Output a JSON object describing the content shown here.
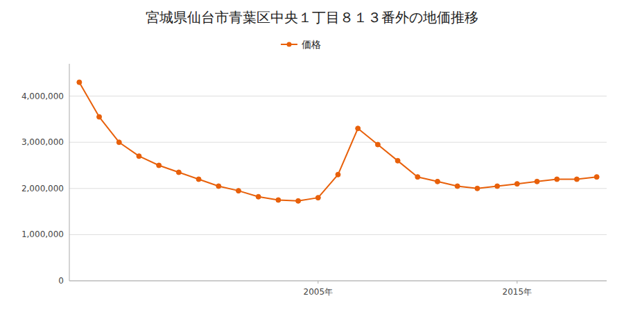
{
  "chart_data": {
    "type": "line",
    "title": "宮城県仙台市青葉区中央１丁目８１３番外の地価推移",
    "x": [
      1993,
      1994,
      1995,
      1996,
      1997,
      1998,
      1999,
      2000,
      2001,
      2002,
      2003,
      2004,
      2005,
      2006,
      2007,
      2008,
      2009,
      2010,
      2011,
      2012,
      2013,
      2014,
      2015,
      2016,
      2017,
      2018,
      2019
    ],
    "series": [
      {
        "name": "価格",
        "color": "#e8600a",
        "marker": "circle",
        "values": [
          4300000,
          3550000,
          3000000,
          2700000,
          2500000,
          2350000,
          2200000,
          2050000,
          1950000,
          1820000,
          1750000,
          1730000,
          1800000,
          2300000,
          3300000,
          2950000,
          2600000,
          2250000,
          2150000,
          2050000,
          2000000,
          2050000,
          2100000,
          2150000,
          2200000,
          2200000,
          2250000
        ]
      }
    ],
    "xlim": [
      1992.5,
      2019.5
    ],
    "xticks": [
      {
        "value": 2005,
        "label": "2005年"
      },
      {
        "value": 2015,
        "label": "2015年"
      }
    ],
    "ylim": [
      0,
      4700000
    ],
    "yticks": [
      0,
      {
        "value": 1000000,
        "label": "1,000,000"
      },
      {
        "value": 2000000,
        "label": "2,000,000"
      },
      {
        "value": 3000000,
        "label": "3,000,000"
      },
      {
        "value": 4000000,
        "label": "4,000,000"
      }
    ],
    "grid": true,
    "legend": "top"
  }
}
